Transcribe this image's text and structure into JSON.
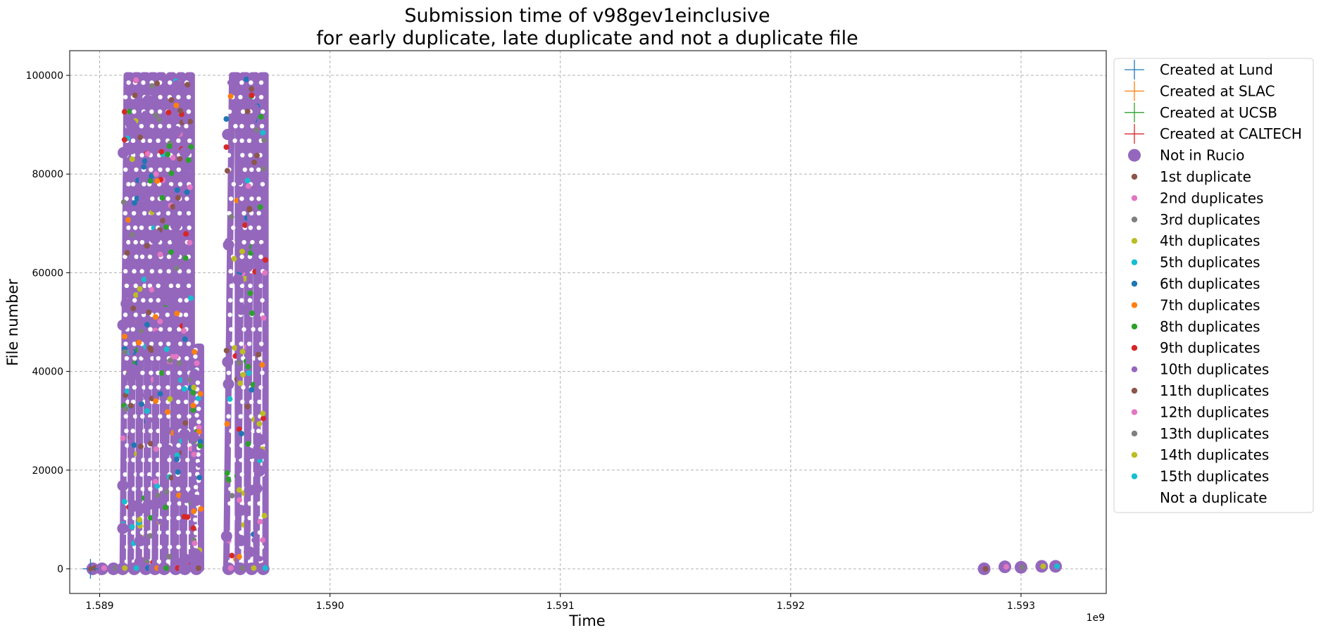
{
  "chart_data": {
    "type": "scatter",
    "title": [
      "Submission time of v98gev1einclusive",
      "for early duplicate, late duplicate and not a duplicate file"
    ],
    "xlabel": "Time",
    "ylabel": "File number",
    "x_offset_label": "1e9",
    "xlim": [
      1588.87,
      1593.37
    ],
    "ylim": [
      -5000,
      105000
    ],
    "x_unit_note": "x values are in units of 1e6 seconds (axis multiplier 1e9; tick 1.589 = 1589e6)",
    "x_ticks": [
      1589,
      1590,
      1591,
      1592,
      1593
    ],
    "x_tick_labels": [
      "1.589",
      "1.590",
      "1.591",
      "1.592",
      "1.593"
    ],
    "y_ticks": [
      0,
      20000,
      40000,
      60000,
      80000,
      100000
    ],
    "y_tick_labels": [
      "0",
      "20000",
      "40000",
      "60000",
      "80000",
      "100000"
    ],
    "grid": true,
    "legend_position": "outside-right",
    "colors": {
      "blue": "#1f77b4",
      "orange": "#ff7f0e",
      "green": "#2ca02c",
      "red": "#d62728",
      "purple": "#9467bd",
      "brown": "#8c564b",
      "pink": "#e377c2",
      "gray": "#7f7f7f",
      "olive": "#bcbd22",
      "cyan": "#17becf"
    },
    "legend": [
      {
        "label": "Created at Lund",
        "marker": "plus",
        "color": "#1f77b4"
      },
      {
        "label": "Created at SLAC",
        "marker": "plus",
        "color": "#ff7f0e"
      },
      {
        "label": "Created at UCSB",
        "marker": "plus",
        "color": "#2ca02c"
      },
      {
        "label": "Created at CALTECH",
        "marker": "plus",
        "color": "#d62728"
      },
      {
        "label": "Not in Rucio",
        "marker": "big-dot",
        "color": "#9467bd"
      },
      {
        "label": "1st duplicate",
        "marker": "dot",
        "color": "#8c564b"
      },
      {
        "label": "2nd duplicates",
        "marker": "dot",
        "color": "#e377c2"
      },
      {
        "label": "3rd duplicates",
        "marker": "dot",
        "color": "#7f7f7f"
      },
      {
        "label": "4th duplicates",
        "marker": "dot",
        "color": "#bcbd22"
      },
      {
        "label": "5th duplicates",
        "marker": "dot",
        "color": "#17becf"
      },
      {
        "label": "6th duplicates",
        "marker": "dot",
        "color": "#1f77b4"
      },
      {
        "label": "7th duplicates",
        "marker": "dot",
        "color": "#ff7f0e"
      },
      {
        "label": "8th duplicates",
        "marker": "dot",
        "color": "#2ca02c"
      },
      {
        "label": "9th duplicates",
        "marker": "dot",
        "color": "#d62728"
      },
      {
        "label": "10th duplicates",
        "marker": "dot",
        "color": "#9467bd"
      },
      {
        "label": "11th duplicates",
        "marker": "dot",
        "color": "#8c564b"
      },
      {
        "label": "12th duplicates",
        "marker": "dot",
        "color": "#e377c2"
      },
      {
        "label": "13th duplicates",
        "marker": "dot",
        "color": "#7f7f7f"
      },
      {
        "label": "14th duplicates",
        "marker": "dot",
        "color": "#bcbd22"
      },
      {
        "label": "15th duplicates",
        "marker": "dot",
        "color": "#17becf"
      },
      {
        "label": "Not a duplicate",
        "marker": "none",
        "color": "#ffffff"
      }
    ],
    "submission_bands": [
      {
        "name": "band-1",
        "x_start": 1589.1,
        "x_end": 1589.135,
        "y_start": 0,
        "y_end": 100000
      },
      {
        "name": "band-2",
        "x_start": 1589.135,
        "x_end": 1589.17,
        "y_start": 0,
        "y_end": 100000
      },
      {
        "name": "band-3",
        "x_start": 1589.17,
        "x_end": 1589.205,
        "y_start": 0,
        "y_end": 100000
      },
      {
        "name": "band-4",
        "x_start": 1589.205,
        "x_end": 1589.24,
        "y_start": 0,
        "y_end": 100000
      },
      {
        "name": "band-5",
        "x_start": 1589.24,
        "x_end": 1589.275,
        "y_start": 0,
        "y_end": 100000
      },
      {
        "name": "band-6",
        "x_start": 1589.285,
        "x_end": 1589.32,
        "y_start": 0,
        "y_end": 100000
      },
      {
        "name": "band-7",
        "x_start": 1589.33,
        "x_end": 1589.36,
        "y_start": 0,
        "y_end": 100000
      },
      {
        "name": "band-8",
        "x_start": 1589.365,
        "x_end": 1589.4,
        "y_start": 0,
        "y_end": 100000
      },
      {
        "name": "band-9",
        "x_start": 1589.405,
        "x_end": 1589.44,
        "y_start": 0,
        "y_end": 45000
      },
      {
        "name": "band-10",
        "x_start": 1589.55,
        "x_end": 1589.6,
        "y_start": 0,
        "y_end": 100000
      },
      {
        "name": "band-11",
        "x_start": 1589.6,
        "x_end": 1589.64,
        "y_start": 0,
        "y_end": 100000
      },
      {
        "name": "band-12",
        "x_start": 1589.64,
        "x_end": 1589.68,
        "y_start": 0,
        "y_end": 100000
      },
      {
        "name": "band-13",
        "x_start": 1589.68,
        "x_end": 1589.72,
        "y_start": 0,
        "y_end": 100000
      }
    ],
    "baseline_points_x": [
      1588.97,
      1589.01,
      1589.06,
      1589.1,
      1589.15,
      1589.2,
      1589.24,
      1589.28,
      1589.33,
      1589.37,
      1589.42,
      1589.56,
      1589.61,
      1589.66,
      1589.71
    ],
    "late_points": [
      {
        "x": 1592.84,
        "y": 0
      },
      {
        "x": 1592.93,
        "y": 400
      },
      {
        "x": 1593.0,
        "y": 300
      },
      {
        "x": 1593.09,
        "y": 500
      },
      {
        "x": 1593.15,
        "y": 500
      }
    ],
    "lund_marker": {
      "x": 1588.96,
      "y": 0
    }
  }
}
